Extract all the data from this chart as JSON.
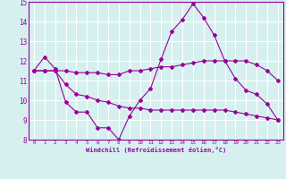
{
  "title": "",
  "xlabel": "Windchill (Refroidissement éolien,°C)",
  "ylabel": "",
  "background_color": "#d6f0f0",
  "line_color": "#990099",
  "grid_color": "#ffffff",
  "xlim": [
    -0.5,
    23.5
  ],
  "ylim": [
    8,
    15
  ],
  "yticks": [
    8,
    9,
    10,
    11,
    12,
    13,
    14,
    15
  ],
  "xticks": [
    0,
    1,
    2,
    3,
    4,
    5,
    6,
    7,
    8,
    9,
    10,
    11,
    12,
    13,
    14,
    15,
    16,
    17,
    18,
    19,
    20,
    21,
    22,
    23
  ],
  "series": [
    [
      11.5,
      12.2,
      11.6,
      9.9,
      9.4,
      9.4,
      8.6,
      8.6,
      8.0,
      9.2,
      10.0,
      10.6,
      12.1,
      13.5,
      14.1,
      14.9,
      14.2,
      13.3,
      12.0,
      11.1,
      10.5,
      10.3,
      9.8,
      9.0
    ],
    [
      11.5,
      11.5,
      11.5,
      11.5,
      11.4,
      11.4,
      11.4,
      11.3,
      11.3,
      11.5,
      11.5,
      11.6,
      11.7,
      11.7,
      11.8,
      11.9,
      12.0,
      12.0,
      12.0,
      12.0,
      12.0,
      11.8,
      11.5,
      11.0
    ],
    [
      11.5,
      11.5,
      11.5,
      10.8,
      10.3,
      10.2,
      10.0,
      9.9,
      9.7,
      9.6,
      9.6,
      9.5,
      9.5,
      9.5,
      9.5,
      9.5,
      9.5,
      9.5,
      9.5,
      9.4,
      9.3,
      9.2,
      9.1,
      9.0
    ]
  ]
}
